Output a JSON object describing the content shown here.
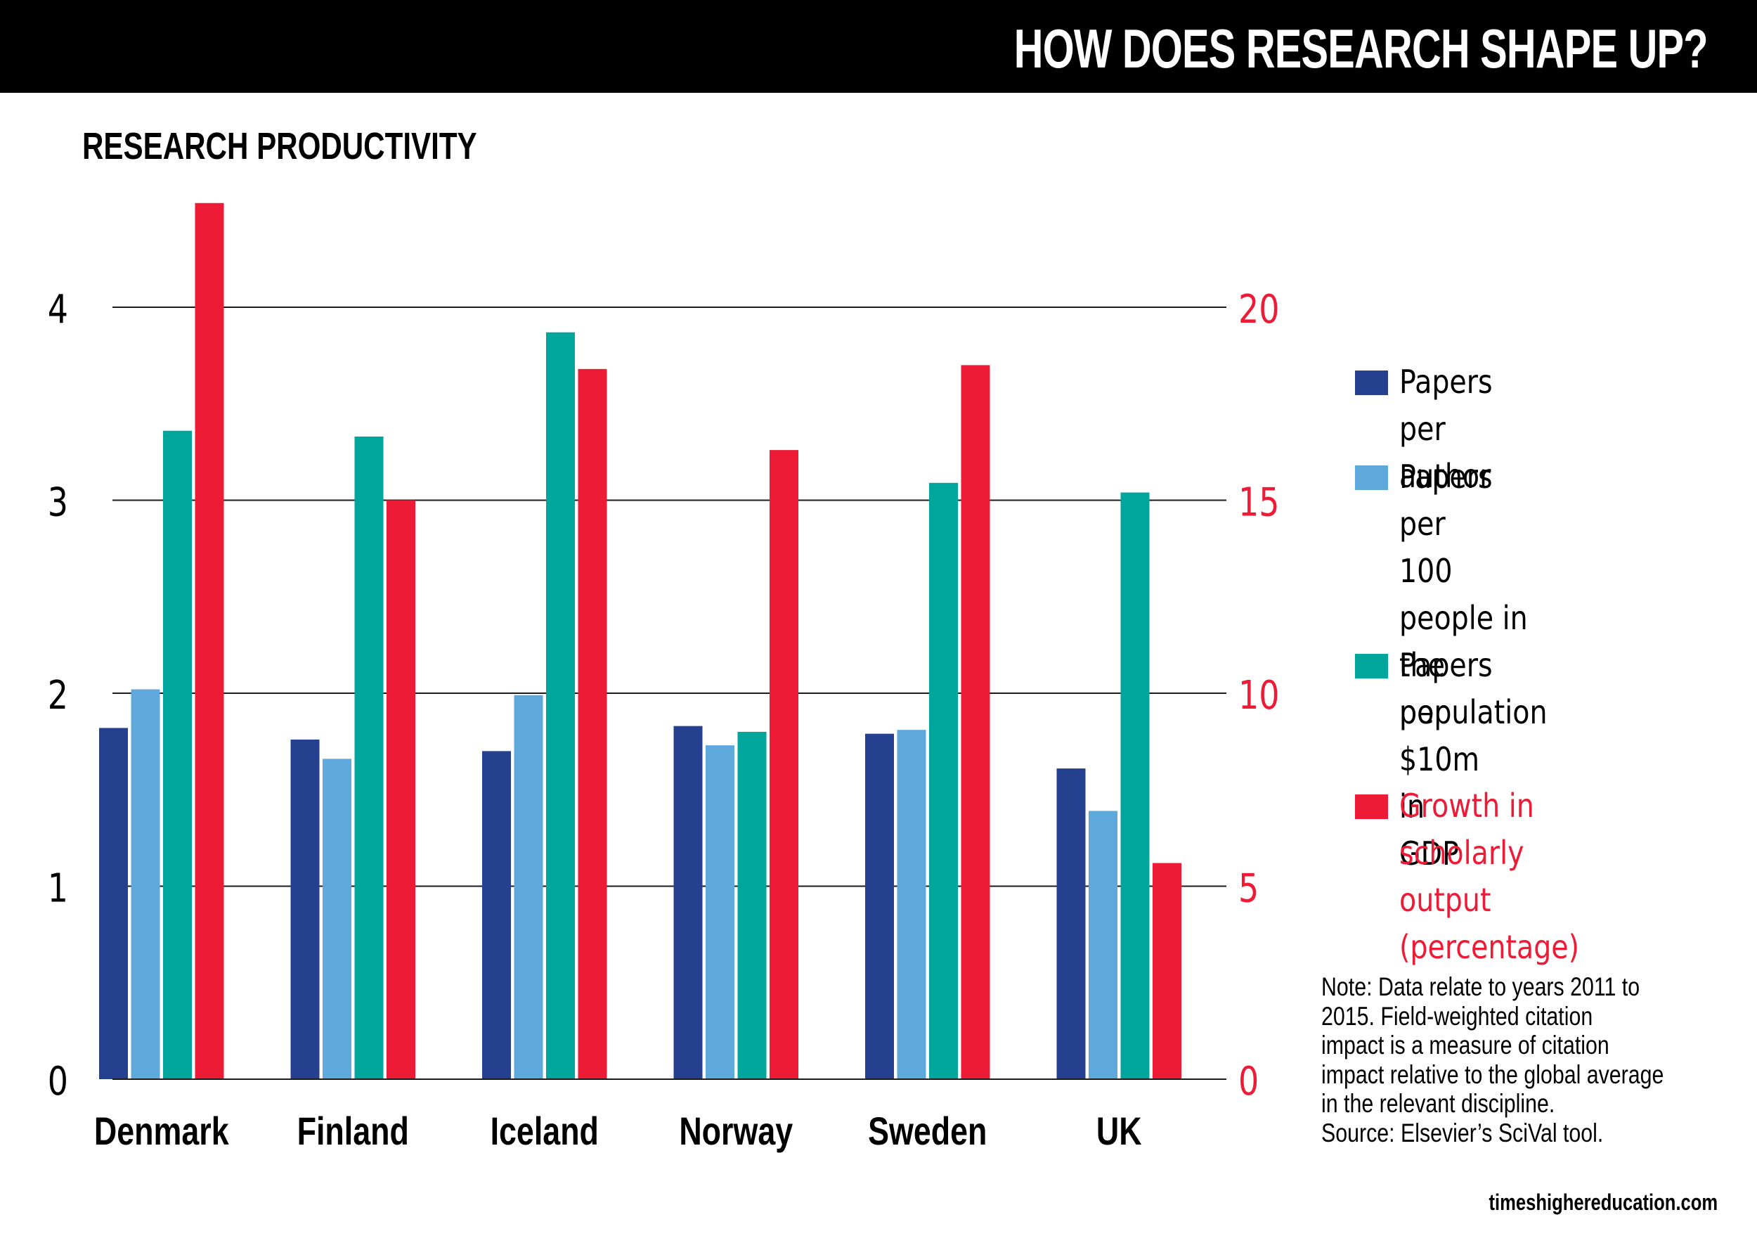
{
  "header": {
    "title": "HOW DOES RESEARCH SHAPE UP?"
  },
  "subtitle": "RESEARCH PRODUCTIVITY",
  "chart_data": {
    "type": "bar",
    "title": "RESEARCH PRODUCTIVITY",
    "categories": [
      "Denmark",
      "Finland",
      "Iceland",
      "Norway",
      "Sweden",
      "UK"
    ],
    "series": [
      {
        "name": "Papers per author",
        "axis": "left",
        "color": "#25408F",
        "values": [
          1.82,
          1.76,
          1.7,
          1.83,
          1.79,
          1.61
        ]
      },
      {
        "name": "Papers per 100 people in the population",
        "axis": "left",
        "color": "#5FA8DC",
        "values": [
          2.02,
          1.66,
          1.99,
          1.73,
          1.81,
          1.39
        ]
      },
      {
        "name": "Papers per $10m in GDP",
        "axis": "left",
        "color": "#00A69C",
        "values": [
          3.36,
          3.33,
          3.87,
          1.8,
          3.09,
          3.04
        ]
      },
      {
        "name": "Growth in scholarly output (percentage)",
        "axis": "right",
        "color": "#ED1B36",
        "values": [
          22.7,
          15.0,
          18.4,
          16.3,
          18.5,
          5.6
        ]
      }
    ],
    "left_axis": {
      "ylim": [
        0,
        4
      ],
      "ticks": [
        "0",
        "1",
        "2",
        "3",
        "4"
      ],
      "label": ""
    },
    "right_axis": {
      "ylim": [
        0,
        20
      ],
      "ticks": [
        "0",
        "5",
        "10",
        "15",
        "20"
      ],
      "label": "",
      "color": "#ED1B36"
    },
    "xlabel": "",
    "grid": true,
    "legend_position": "right"
  },
  "legend": [
    {
      "label": "Papers per author",
      "color": "#25408F",
      "text_color": "#000000"
    },
    {
      "label": "Papers per\n100 people in the\npopulation",
      "color": "#5FA8DC",
      "text_color": "#000000"
    },
    {
      "label": "Papers per\n$10m in GDP",
      "color": "#00A69C",
      "text_color": "#000000"
    },
    {
      "label": "Growth in scholarly\noutput (percentage)",
      "color": "#ED1B36",
      "text_color": "#ED1B36"
    }
  ],
  "note": {
    "lines": [
      "Note: Data relate to years 2011 to",
      "2015. Field-weighted citation",
      "impact is a measure of citation",
      "impact relative to the global average",
      "in the relevant discipline.",
      "Source: Elsevier’s SciVal tool."
    ]
  },
  "site": "timeshighereducation.com"
}
